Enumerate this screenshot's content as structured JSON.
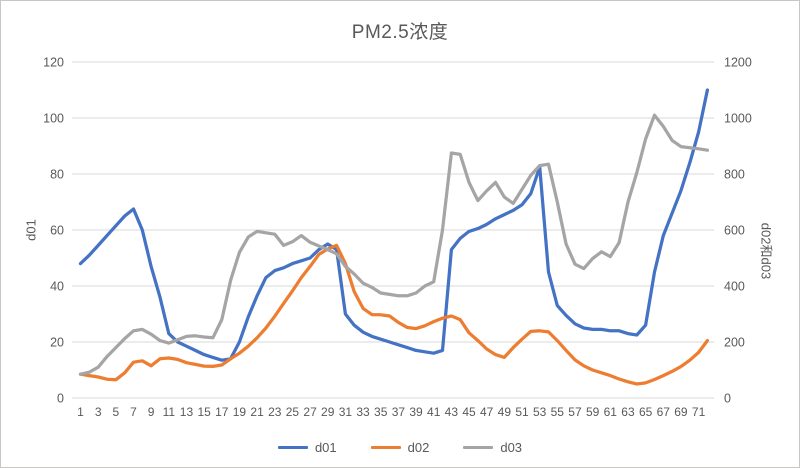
{
  "colors": {
    "d01": "#4472C4",
    "d02": "#ED7D31",
    "d03": "#A5A5A5",
    "grid": "#D9D9D9",
    "text": "#595959",
    "border": "#C8C6C4"
  },
  "legend": {
    "items": [
      {
        "label": "d01",
        "series": "d01"
      },
      {
        "label": "d02",
        "series": "d02"
      },
      {
        "label": "d03",
        "series": "d03"
      }
    ]
  },
  "chart_data": {
    "type": "line",
    "title": "PM2.5浓度",
    "grid": true,
    "legend_position": "bottom",
    "x": [
      1,
      2,
      3,
      4,
      5,
      6,
      7,
      8,
      9,
      10,
      11,
      12,
      13,
      14,
      15,
      16,
      17,
      18,
      19,
      20,
      21,
      22,
      23,
      24,
      25,
      26,
      27,
      28,
      29,
      30,
      31,
      32,
      33,
      34,
      35,
      36,
      37,
      38,
      39,
      40,
      41,
      42,
      43,
      44,
      45,
      46,
      47,
      48,
      49,
      50,
      51,
      52,
      53,
      54,
      55,
      56,
      57,
      58,
      59,
      60,
      61,
      62,
      63,
      64,
      65,
      66,
      67,
      68,
      69,
      70,
      71,
      72
    ],
    "x_tick_labels": [
      1,
      3,
      5,
      7,
      9,
      11,
      13,
      15,
      17,
      19,
      21,
      23,
      25,
      27,
      29,
      31,
      33,
      35,
      37,
      39,
      41,
      43,
      45,
      47,
      49,
      51,
      53,
      55,
      57,
      59,
      61,
      63,
      65,
      67,
      69,
      71
    ],
    "left_axis": {
      "title": "d01",
      "min": 0,
      "max": 120,
      "ticks": [
        0,
        20,
        40,
        60,
        80,
        100,
        120
      ]
    },
    "right_axis": {
      "title": "d02和d03",
      "min": 0,
      "max": 1200,
      "ticks": [
        0,
        200,
        400,
        600,
        800,
        1000,
        1200
      ]
    },
    "series": [
      {
        "name": "d01",
        "axis": "left",
        "color": "#4472C4",
        "values": [
          48,
          51,
          54.5,
          58,
          61.5,
          65,
          67.5,
          60,
          47,
          36,
          23,
          20,
          18.5,
          17,
          15.5,
          14.5,
          13.5,
          14,
          20,
          29,
          36.5,
          43,
          45.5,
          46.5,
          48,
          49,
          50,
          53,
          55,
          53,
          30,
          26,
          23.5,
          22,
          21,
          20,
          19,
          18,
          17,
          16.5,
          16,
          17,
          53,
          57,
          59.5,
          60.5,
          62,
          64,
          65.5,
          67,
          69,
          73,
          82.5,
          45,
          33,
          29.5,
          26.5,
          25,
          24.5,
          24.5,
          24,
          24,
          23,
          22.5,
          26,
          45,
          58,
          66,
          74,
          84,
          95,
          110
        ]
      },
      {
        "name": "d02",
        "axis": "right",
        "color": "#ED7D31",
        "values": [
          85,
          80,
          75,
          67,
          65,
          90,
          128,
          133,
          115,
          140,
          143,
          138,
          126,
          120,
          114,
          113,
          118,
          140,
          160,
          185,
          215,
          250,
          292,
          338,
          382,
          430,
          470,
          513,
          532,
          545,
          480,
          380,
          320,
          298,
          297,
          293,
          270,
          252,
          248,
          258,
          273,
          285,
          293,
          280,
          233,
          205,
          175,
          155,
          145,
          180,
          210,
          238,
          240,
          236,
          205,
          170,
          136,
          115,
          100,
          90,
          80,
          68,
          58,
          50,
          54,
          66,
          80,
          95,
          112,
          135,
          163,
          205
        ]
      },
      {
        "name": "d03",
        "axis": "right",
        "color": "#A5A5A5",
        "values": [
          85,
          92,
          110,
          148,
          180,
          212,
          240,
          245,
          228,
          205,
          196,
          208,
          220,
          222,
          218,
          215,
          280,
          420,
          520,
          575,
          595,
          590,
          585,
          545,
          558,
          580,
          556,
          543,
          530,
          515,
          470,
          443,
          410,
          395,
          375,
          370,
          365,
          365,
          375,
          400,
          415,
          600,
          875,
          870,
          770,
          705,
          740,
          770,
          718,
          695,
          745,
          795,
          830,
          835,
          700,
          550,
          478,
          462,
          498,
          522,
          505,
          555,
          700,
          805,
          925,
          1010,
          970,
          920,
          898,
          894,
          890,
          885
        ]
      }
    ]
  }
}
